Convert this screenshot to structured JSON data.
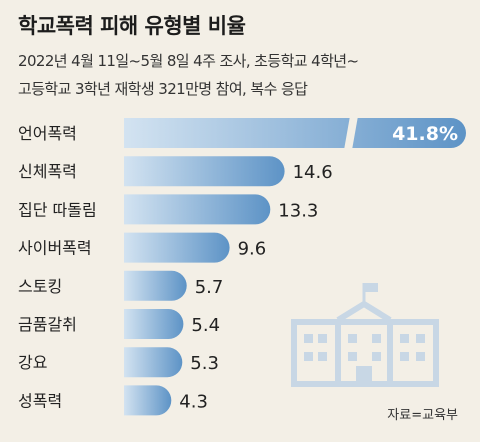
{
  "title": "학교폭력 피해 유형별 비율",
  "subtitle_line1": "2022년 4월 11일~5월 8일 4주 조사, 초등학교 4학년~",
  "subtitle_line2": "고등학교 3학년 재학생 321만명 참여, 복수 응답",
  "source": "자료=교육부",
  "colors": {
    "background": "#f3efe6",
    "bar_light": "#d3e3f1",
    "bar_dark": "#5d93c6",
    "highlight_label": "#ffffff",
    "icon": "#c8d7e5"
  },
  "icon": "school-building-icon",
  "chart_data": {
    "type": "bar",
    "orientation": "horizontal",
    "categories": [
      "언어폭력",
      "신체폭력",
      "집단 따돌림",
      "사이버폭력",
      "스토킹",
      "금품갈취",
      "강요",
      "성폭력"
    ],
    "values": [
      41.8,
      14.6,
      13.3,
      9.6,
      5.7,
      5.4,
      5.3,
      4.3
    ],
    "value_labels": [
      "41.8%",
      "14.6",
      "13.3",
      "9.6",
      "5.7",
      "5.4",
      "5.3",
      "4.3"
    ],
    "axis_break_on_first_bar": true,
    "grid": false,
    "legend": "none"
  }
}
